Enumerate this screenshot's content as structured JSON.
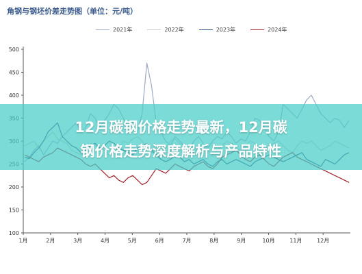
{
  "chart_title": "角钢与钢坯价差走势图（单位：元/吨）",
  "overlay_title": {
    "line1": "12月碳钢价格走势最新，12月碳",
    "line2": "钢价格走势深度解析与产品特性"
  },
  "chart_data": {
    "type": "line",
    "title": "角钢与钢坯价差走势图（单位：元/吨）",
    "xlabel": "",
    "ylabel": "",
    "ylim": [
      100,
      500
    ],
    "yticks": [
      100,
      150,
      200,
      250,
      300,
      350,
      400,
      450,
      500
    ],
    "x_ticks": [
      "1月",
      "2月",
      "3月",
      "4月",
      "5月",
      "6月",
      "7月",
      "8月",
      "9月",
      "10月",
      "11月",
      "12月"
    ],
    "grid": false,
    "legend_position": "top",
    "series": [
      {
        "name": "2021年",
        "color": "#9aa9c4",
        "values": [
          255,
          265,
          280,
          290,
          270,
          285,
          300,
          295,
          310,
          320,
          330,
          340,
          320,
          330,
          360,
          350,
          330,
          345,
          360,
          380,
          370,
          350,
          330,
          340,
          320,
          360,
          470,
          420,
          340,
          320,
          300,
          290,
          310,
          300,
          290,
          280,
          300,
          310,
          295,
          285,
          300,
          310,
          305,
          320,
          310,
          295,
          305,
          300,
          320,
          350,
          345,
          330,
          310,
          300,
          320,
          380,
          370,
          360,
          350,
          370,
          390,
          400,
          380,
          360,
          350,
          340,
          350,
          345,
          330,
          345
        ]
      },
      {
        "name": "2022年",
        "color": "#c8c8c8",
        "values": [
          290,
          295,
          300,
          285,
          300,
          310,
          320,
          305,
          300,
          295,
          280,
          275,
          270,
          285,
          295,
          290,
          285,
          280,
          270,
          275,
          285,
          300,
          295,
          305,
          310,
          300,
          285,
          275,
          280,
          290,
          285,
          300,
          305,
          295,
          290,
          280,
          275,
          285,
          290,
          280,
          270,
          280,
          290,
          300,
          295,
          285,
          280,
          290,
          300,
          295,
          285,
          280,
          290,
          295,
          300,
          290,
          280,
          275,
          290,
          300,
          295,
          300,
          290,
          280,
          285,
          290,
          300,
          295,
          290,
          285
        ]
      },
      {
        "name": "2023年",
        "color": "#2d4a7a",
        "values": [
          265,
          262,
          275,
          285,
          300,
          320,
          330,
          340,
          310,
          300,
          290,
          285,
          275,
          280,
          290,
          295,
          285,
          290,
          300,
          295,
          285,
          280,
          275,
          270,
          285,
          290,
          295,
          280,
          270,
          260,
          255,
          260,
          270,
          265,
          255,
          260,
          250,
          255,
          260,
          250,
          245,
          255,
          260,
          250,
          255,
          260,
          255,
          250,
          245,
          255,
          260,
          265,
          270,
          265,
          260,
          255,
          260,
          265,
          270,
          275,
          260,
          255,
          250,
          245,
          260,
          255,
          250,
          260,
          270,
          275
        ]
      },
      {
        "name": "2024年",
        "color": "#a0202a",
        "values": [
          270,
          265,
          260,
          255,
          265,
          270,
          275,
          285,
          280,
          275,
          270,
          265,
          260,
          250,
          245,
          250,
          240,
          230,
          220,
          225,
          215,
          210,
          220,
          225,
          215,
          205,
          210,
          225,
          240,
          235,
          230,
          240,
          250,
          245,
          240,
          235,
          245,
          250,
          255,
          245,
          240,
          250,
          265,
          270,
          275,
          280,
          270,
          260,
          255,
          265,
          270,
          260,
          250,
          245,
          255,
          265,
          270,
          275,
          265,
          260,
          255,
          250,
          245,
          240,
          235,
          230,
          225,
          220,
          215,
          210
        ]
      }
    ]
  }
}
